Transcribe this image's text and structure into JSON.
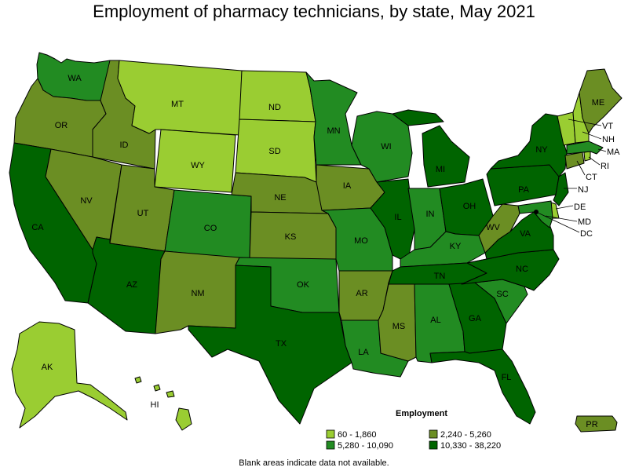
{
  "title": "Employment of pharmacy technicians, by state, May 2021",
  "footnote": "Blank areas indicate data not available.",
  "legend": {
    "title": "Employment",
    "items": [
      {
        "key": "c1",
        "label": "60 - 1,860",
        "color": "#9ACD32"
      },
      {
        "key": "c2",
        "label": "2,240 - 5,260",
        "color": "#6B8E23"
      },
      {
        "key": "c3",
        "label": "5,280 - 10,090",
        "color": "#228B22"
      },
      {
        "key": "c4",
        "label": "10,330 - 38,220",
        "color": "#006400"
      }
    ]
  },
  "states": [
    {
      "abbr": "WA",
      "cls": "c3"
    },
    {
      "abbr": "OR",
      "cls": "c2"
    },
    {
      "abbr": "CA",
      "cls": "c4"
    },
    {
      "abbr": "ID",
      "cls": "c2"
    },
    {
      "abbr": "NV",
      "cls": "c2"
    },
    {
      "abbr": "MT",
      "cls": "c1"
    },
    {
      "abbr": "WY",
      "cls": "c1"
    },
    {
      "abbr": "UT",
      "cls": "c2"
    },
    {
      "abbr": "AZ",
      "cls": "c4"
    },
    {
      "abbr": "CO",
      "cls": "c3"
    },
    {
      "abbr": "NM",
      "cls": "c2"
    },
    {
      "abbr": "ND",
      "cls": "c1"
    },
    {
      "abbr": "SD",
      "cls": "c1"
    },
    {
      "abbr": "NE",
      "cls": "c2"
    },
    {
      "abbr": "KS",
      "cls": "c2"
    },
    {
      "abbr": "OK",
      "cls": "c3"
    },
    {
      "abbr": "TX",
      "cls": "c4"
    },
    {
      "abbr": "MN",
      "cls": "c3"
    },
    {
      "abbr": "IA",
      "cls": "c2"
    },
    {
      "abbr": "MO",
      "cls": "c3"
    },
    {
      "abbr": "AR",
      "cls": "c2"
    },
    {
      "abbr": "LA",
      "cls": "c3"
    },
    {
      "abbr": "WI",
      "cls": "c3"
    },
    {
      "abbr": "IL",
      "cls": "c4"
    },
    {
      "abbr": "MI",
      "cls": "c4"
    },
    {
      "abbr": "IN",
      "cls": "c3"
    },
    {
      "abbr": "OH",
      "cls": "c4"
    },
    {
      "abbr": "KY",
      "cls": "c3"
    },
    {
      "abbr": "TN",
      "cls": "c4"
    },
    {
      "abbr": "MS",
      "cls": "c2"
    },
    {
      "abbr": "AL",
      "cls": "c3"
    },
    {
      "abbr": "GA",
      "cls": "c4"
    },
    {
      "abbr": "FL",
      "cls": "c4"
    },
    {
      "abbr": "SC",
      "cls": "c3"
    },
    {
      "abbr": "NC",
      "cls": "c4"
    },
    {
      "abbr": "VA",
      "cls": "c4"
    },
    {
      "abbr": "WV",
      "cls": "c2"
    },
    {
      "abbr": "PA",
      "cls": "c4"
    },
    {
      "abbr": "NY",
      "cls": "c4"
    },
    {
      "abbr": "NJ",
      "cls": "c4"
    },
    {
      "abbr": "DE",
      "cls": "c1"
    },
    {
      "abbr": "MD",
      "cls": "c3"
    },
    {
      "abbr": "DC",
      "cls": "c1"
    },
    {
      "abbr": "CT",
      "cls": "c2"
    },
    {
      "abbr": "RI",
      "cls": "c1"
    },
    {
      "abbr": "MA",
      "cls": "c3"
    },
    {
      "abbr": "VT",
      "cls": "c1"
    },
    {
      "abbr": "NH",
      "cls": "c1"
    },
    {
      "abbr": "ME",
      "cls": "c2"
    },
    {
      "abbr": "AK",
      "cls": "c1"
    },
    {
      "abbr": "HI",
      "cls": "c1"
    },
    {
      "abbr": "PR",
      "cls": "c2"
    }
  ]
}
